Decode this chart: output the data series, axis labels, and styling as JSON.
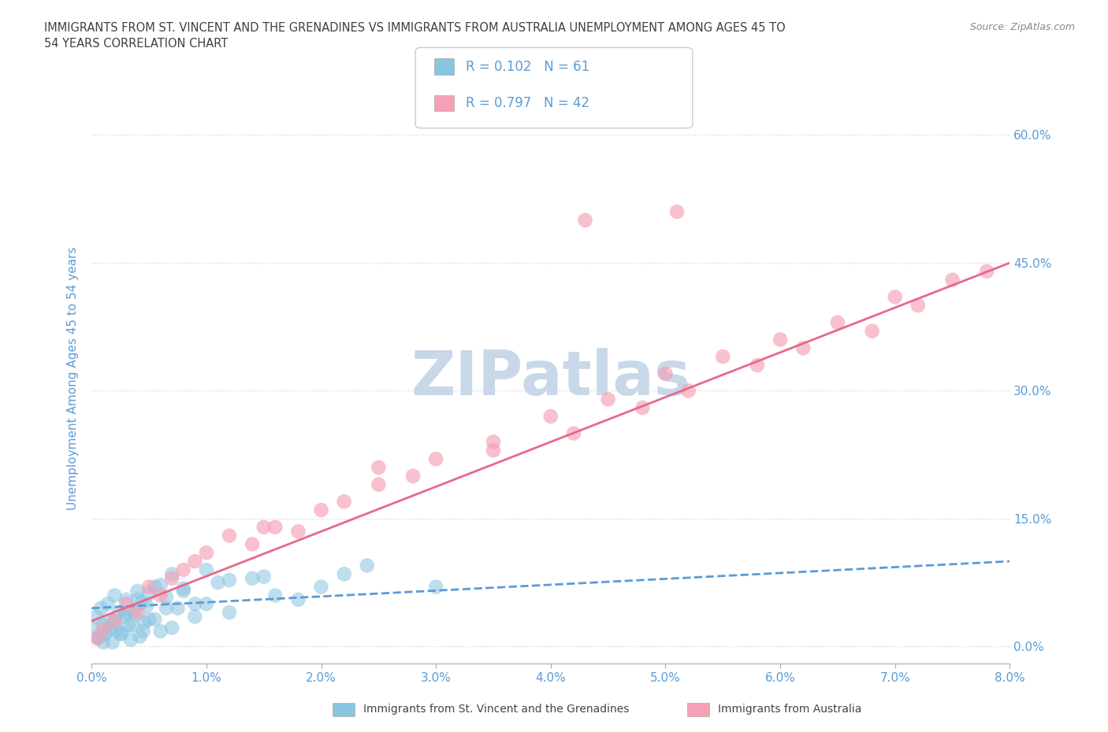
{
  "title": "IMMIGRANTS FROM ST. VINCENT AND THE GRENADINES VS IMMIGRANTS FROM AUSTRALIA UNEMPLOYMENT AMONG AGES 45 TO\n54 YEARS CORRELATION CHART",
  "source": "Source: ZipAtlas.com",
  "ylabel": "Unemployment Among Ages 45 to 54 years",
  "x_tick_labels": [
    "0.0%",
    "1.0%",
    "2.0%",
    "3.0%",
    "4.0%",
    "5.0%",
    "6.0%",
    "7.0%",
    "8.0%"
  ],
  "x_tick_values": [
    0.0,
    1.0,
    2.0,
    3.0,
    4.0,
    5.0,
    6.0,
    7.0,
    8.0
  ],
  "y_tick_labels": [
    "0.0%",
    "15.0%",
    "30.0%",
    "45.0%",
    "60.0%"
  ],
  "y_tick_values": [
    0.0,
    15.0,
    30.0,
    45.0,
    60.0
  ],
  "xlim": [
    0.0,
    8.0
  ],
  "ylim": [
    -2.0,
    65.0
  ],
  "color_blue": "#89c4e1",
  "color_pink": "#f4a0b5",
  "color_blue_line": "#5b9bd5",
  "color_pink_line": "#e8688a",
  "color_title": "#404040",
  "color_source": "#888888",
  "color_axis_label": "#5b9bd5",
  "color_tick_label": "#5b9bd5",
  "watermark_color": "#c8d8e8",
  "sv_x": [
    0.02,
    0.04,
    0.06,
    0.08,
    0.1,
    0.12,
    0.14,
    0.16,
    0.18,
    0.2,
    0.22,
    0.24,
    0.26,
    0.28,
    0.3,
    0.32,
    0.34,
    0.36,
    0.38,
    0.4,
    0.42,
    0.44,
    0.46,
    0.48,
    0.5,
    0.55,
    0.6,
    0.65,
    0.7,
    0.75,
    0.8,
    0.9,
    1.0,
    1.1,
    1.2,
    1.4,
    1.6,
    1.8,
    2.0,
    2.2,
    0.05,
    0.1,
    0.15,
    0.2,
    0.25,
    0.3,
    0.35,
    0.4,
    0.45,
    0.5,
    0.55,
    0.6,
    0.65,
    0.7,
    0.8,
    0.9,
    1.0,
    1.2,
    1.5,
    2.4,
    3.0
  ],
  "sv_y": [
    2.0,
    3.5,
    1.0,
    4.5,
    2.5,
    1.5,
    5.0,
    3.0,
    0.5,
    6.0,
    2.0,
    4.0,
    1.5,
    3.5,
    5.5,
    2.5,
    0.8,
    4.2,
    3.8,
    6.5,
    1.2,
    5.2,
    2.8,
    4.8,
    3.2,
    7.0,
    1.8,
    5.8,
    2.2,
    4.5,
    6.8,
    3.5,
    5.0,
    7.5,
    4.0,
    8.0,
    6.0,
    5.5,
    7.0,
    8.5,
    1.0,
    0.5,
    2.0,
    3.0,
    1.5,
    4.0,
    2.5,
    5.5,
    1.8,
    6.2,
    3.2,
    7.2,
    4.5,
    8.5,
    6.5,
    5.0,
    9.0,
    7.8,
    8.2,
    9.5,
    7.0
  ],
  "au_x": [
    0.05,
    0.1,
    0.2,
    0.3,
    0.4,
    0.5,
    0.6,
    0.7,
    0.8,
    0.9,
    1.0,
    1.2,
    1.4,
    1.6,
    1.8,
    2.0,
    2.2,
    2.5,
    2.8,
    3.0,
    3.5,
    4.0,
    4.5,
    5.0,
    5.5,
    6.0,
    6.5,
    7.0,
    7.5,
    1.5,
    2.5,
    3.5,
    4.2,
    4.8,
    5.2,
    5.8,
    6.2,
    6.8,
    7.2,
    7.8,
    4.3,
    5.1
  ],
  "au_y": [
    1.0,
    2.0,
    3.0,
    5.0,
    4.0,
    7.0,
    6.0,
    8.0,
    9.0,
    10.0,
    11.0,
    13.0,
    12.0,
    14.0,
    13.5,
    16.0,
    17.0,
    19.0,
    20.0,
    22.0,
    24.0,
    27.0,
    29.0,
    32.0,
    34.0,
    36.0,
    38.0,
    41.0,
    43.0,
    14.0,
    21.0,
    23.0,
    25.0,
    28.0,
    30.0,
    33.0,
    35.0,
    37.0,
    40.0,
    44.0,
    50.0,
    51.0
  ],
  "trendline_sv_x0": 0.0,
  "trendline_sv_x1": 8.0,
  "trendline_sv_y0": 4.5,
  "trendline_sv_y1": 10.0,
  "trendline_au_x0": 0.0,
  "trendline_au_x1": 8.0,
  "trendline_au_y0": 3.0,
  "trendline_au_y1": 45.0
}
